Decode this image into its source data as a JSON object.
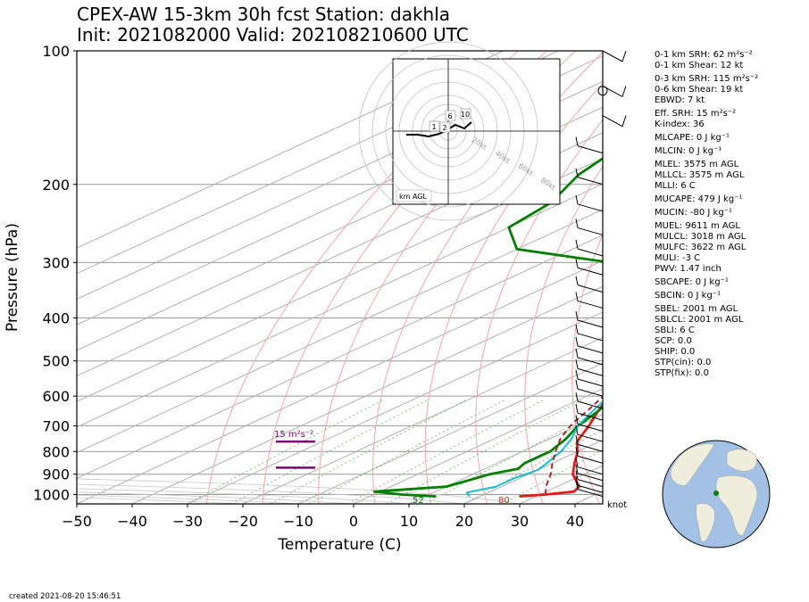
{
  "title": {
    "line1": "CPEX-AW 15-3km  30h fcst  Station: dakhla",
    "line2": "Init: 2021082000  Valid: 202108210600 UTC"
  },
  "colors": {
    "temperature": "#e41a1c",
    "dewpoint": "#008000",
    "wetbulb": "#17becf",
    "parcel": "#a52a2a",
    "srh_layer": "#800080",
    "dry_adiabat": "#f4a6a6",
    "mixing_ratio": "#7fbf7f",
    "isotherm": "#b0b0b0"
  },
  "chart_data": {
    "type": "line",
    "subtype": "skew-T log-p",
    "xlabel": "Temperature (C)",
    "ylabel": "Pressure (hPa)",
    "xlim": [
      -50,
      45
    ],
    "ylim": [
      1050,
      100
    ],
    "y_scale": "log",
    "x_ticks": [
      "−50",
      "−40",
      "−30",
      "−20",
      "−10",
      "0",
      "10",
      "20",
      "30",
      "40"
    ],
    "y_ticks": [
      "100",
      "200",
      "300",
      "400",
      "500",
      "600",
      "700",
      "800",
      "900",
      "1000"
    ],
    "wind_unit_label": "knot",
    "grid": true,
    "series": [
      {
        "key": "temperature",
        "points": [
          [
            1010,
            27
          ],
          [
            1000,
            31
          ],
          [
            985,
            35
          ],
          [
            960,
            34
          ],
          [
            900,
            28
          ],
          [
            850,
            24
          ],
          [
            800,
            20
          ],
          [
            760,
            16
          ],
          [
            700,
            12
          ],
          [
            650,
            8
          ],
          [
            600,
            4
          ],
          [
            550,
            1
          ],
          [
            500,
            -4
          ],
          [
            450,
            -8
          ],
          [
            400,
            -13
          ],
          [
            350,
            -20
          ],
          [
            300,
            -27
          ],
          [
            250,
            -36
          ],
          [
            200,
            -47
          ],
          [
            170,
            -56
          ],
          [
            150,
            -62
          ],
          [
            130,
            -68
          ],
          [
            100,
            -72
          ]
        ]
      },
      {
        "key": "dewpoint",
        "points": [
          [
            1010,
            12
          ],
          [
            1000,
            5
          ],
          [
            985,
            -1
          ],
          [
            960,
            10
          ],
          [
            940,
            11
          ],
          [
            900,
            13
          ],
          [
            875,
            16
          ],
          [
            850,
            15
          ],
          [
            800,
            15
          ],
          [
            750,
            13
          ],
          [
            700,
            10
          ],
          [
            650,
            8
          ],
          [
            600,
            5
          ],
          [
            550,
            0
          ],
          [
            500,
            -6
          ],
          [
            460,
            -9
          ],
          [
            420,
            -6
          ],
          [
            400,
            -10
          ],
          [
            380,
            -15
          ],
          [
            350,
            -23
          ],
          [
            320,
            -34
          ],
          [
            300,
            -48
          ],
          [
            280,
            -70
          ],
          [
            250,
            -80
          ],
          [
            220,
            -82
          ],
          [
            190,
            -88
          ],
          [
            160,
            -92
          ],
          [
            130,
            -94
          ],
          [
            100,
            -88
          ]
        ]
      },
      {
        "key": "wetbulb",
        "points": [
          [
            1010,
            18
          ],
          [
            990,
            16
          ],
          [
            960,
            19
          ],
          [
            920,
            19
          ],
          [
            880,
            20
          ],
          [
            850,
            19
          ],
          [
            800,
            17
          ],
          [
            750,
            14
          ],
          [
            700,
            10
          ],
          [
            650,
            7
          ],
          [
            600,
            4
          ],
          [
            550,
            0
          ],
          [
            500,
            -5
          ],
          [
            450,
            -9
          ],
          [
            420,
            -10
          ],
          [
            400,
            -13
          ],
          [
            350,
            -21
          ],
          [
            300,
            -30
          ],
          [
            250,
            -38
          ],
          [
            200,
            -48
          ],
          [
            170,
            -57
          ],
          [
            150,
            -63
          ],
          [
            130,
            -68
          ],
          [
            100,
            -72
          ]
        ]
      },
      {
        "key": "parcel",
        "points": [
          [
            1000,
            31
          ],
          [
            960,
            28
          ],
          [
            900,
            24
          ],
          [
            850,
            20
          ],
          [
            800,
            16
          ],
          [
            750,
            12
          ],
          [
            720,
            10
          ],
          [
            690,
            8
          ],
          [
            650,
            6
          ],
          [
            600,
            3
          ],
          [
            550,
            0
          ],
          [
            500,
            -3
          ],
          [
            450,
            -6
          ],
          [
            400,
            -10
          ],
          [
            350,
            -16
          ],
          [
            300,
            -23
          ],
          [
            250,
            -32
          ],
          [
            200,
            -44
          ],
          [
            170,
            -53
          ],
          [
            150,
            -60
          ],
          [
            130,
            -68
          ],
          [
            100,
            -82
          ]
        ]
      }
    ],
    "annotations": {
      "srh_label": "15 m²s⁻²",
      "srh_bar_pressures": [
        760,
        870
      ],
      "surface_temp_label": "80",
      "surface_dewpoint_label": "52"
    },
    "winds": {
      "pressures": [
        100,
        120,
        140,
        170,
        200,
        230,
        260,
        290,
        320,
        350,
        380,
        420,
        450,
        480,
        510,
        540,
        570,
        600,
        640,
        680,
        720,
        760,
        800,
        850,
        900,
        930,
        960,
        990,
        1010
      ]
    },
    "hodograph": {
      "labels": [
        "1",
        "2",
        "6",
        "10"
      ],
      "ring_labels": [
        "20kt",
        "40kt",
        "60kt",
        "80kt"
      ],
      "footer": "km AGL"
    }
  },
  "stats": [
    {
      "text": "0-1 km SRH: 62 m²s⁻²"
    },
    {
      "text": "0-1 km Shear: 12 kt"
    },
    {
      "text": "0-3 km SRH: 115 m²s⁻²",
      "gap": true
    },
    {
      "text": "0-6 km Shear: 19 kt"
    },
    {
      "text": "EBWD: 7 kt"
    },
    {
      "text": "Eff. SRH: 15 m²s⁻²",
      "gap": true
    },
    {
      "text": "K-index: 36"
    },
    {
      "text": "MLCAPE: 0 J kg⁻¹",
      "gap": true
    },
    {
      "text": "MLCIN: 0 J kg⁻¹",
      "gap": true
    },
    {
      "text": "MLEL: 3575 m AGL",
      "gap": true
    },
    {
      "text": "MLLCL: 3575 m AGL"
    },
    {
      "text": "MLLI: 6 C"
    },
    {
      "text": "MUCAPE: 479 J kg⁻¹",
      "gap": true
    },
    {
      "text": "MUCIN: -80 J kg⁻¹",
      "gap": true
    },
    {
      "text": "MUEL: 9611 m AGL",
      "gap": true
    },
    {
      "text": "MULCL: 3018 m AGL"
    },
    {
      "text": "MULFC: 3622 m AGL"
    },
    {
      "text": "MULI: -3 C"
    },
    {
      "text": "PWV: 1.47 inch"
    },
    {
      "text": "SBCAPE: 0 J kg⁻¹",
      "gap": true
    },
    {
      "text": "SBCIN: 0 J kg⁻¹",
      "gap": true
    },
    {
      "text": "SBEL: 2001 m AGL",
      "gap": true
    },
    {
      "text": "SBLCL: 2001 m AGL"
    },
    {
      "text": "SBLI: 6 C"
    },
    {
      "text": "SCP: 0.0"
    },
    {
      "text": "SHIP: 0.0"
    },
    {
      "text": "STP(cin): 0.0"
    },
    {
      "text": "STP(fix): 0.0"
    }
  ],
  "footer": {
    "created": "created 2021-08-20 15:46:51"
  },
  "globe": {
    "ocean": "#a3c1e5",
    "land": "#efeddc",
    "marker": "#008000"
  }
}
